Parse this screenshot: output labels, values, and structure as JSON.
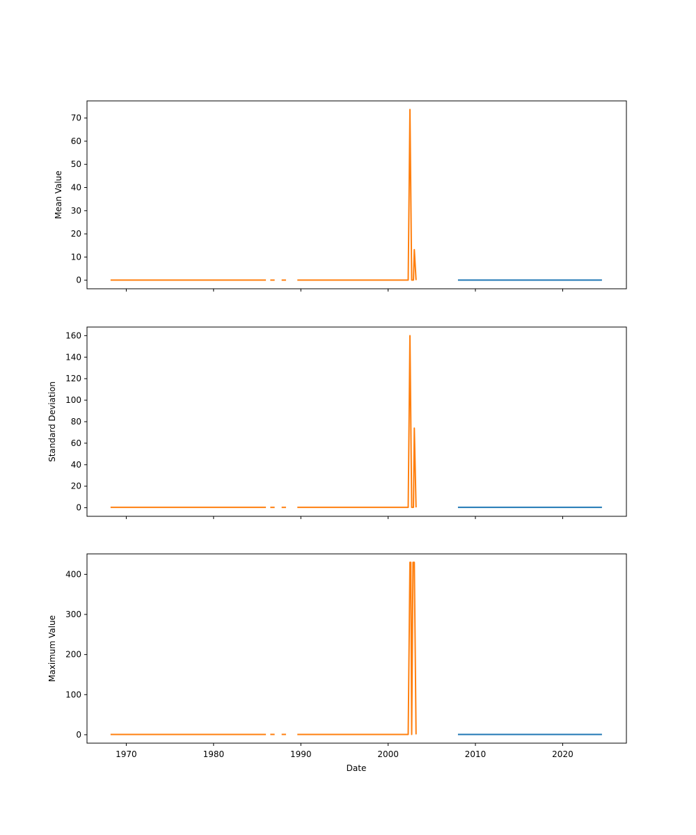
{
  "figure": {
    "xlabel": "Date",
    "xlim": [
      1965.5,
      2027.3
    ],
    "xticks": [
      1970,
      1980,
      1990,
      2000,
      2010,
      2020
    ]
  },
  "colors": {
    "series_a": "#1f77b4",
    "series_b": "#ff7f0e"
  },
  "chart_data": [
    {
      "type": "line",
      "ylabel": "Mean Value",
      "ylim": [
        -3.7,
        77.4
      ],
      "yticks": [
        0,
        10,
        20,
        30,
        40,
        50,
        60,
        70
      ],
      "grid": false,
      "x_axis_tick_labels_shown": false,
      "series": [
        {
          "color": "series_a",
          "segments": [
            [
              [
                2008.0,
                0.05
              ],
              [
                2016.0,
                0.05
              ],
              [
                2024.5,
                0.05
              ]
            ]
          ]
        },
        {
          "color": "series_b",
          "segments": [
            [
              [
                1968.2,
                0.05
              ],
              [
                1976.0,
                0.05
              ],
              [
                1986.0,
                0.05
              ]
            ],
            [
              [
                1986.5,
                0.05
              ],
              [
                1987.0,
                0.05
              ]
            ],
            [
              [
                1987.8,
                0.05
              ],
              [
                1988.3,
                0.05
              ]
            ],
            [
              [
                1989.6,
                0.05
              ],
              [
                1997.0,
                0.05
              ],
              [
                2002.3,
                0.05
              ],
              [
                2002.5,
                73.7
              ],
              [
                2002.7,
                0.05
              ],
              [
                2002.9,
                0.05
              ],
              [
                2003.0,
                13.2
              ],
              [
                2003.2,
                0.05
              ]
            ]
          ]
        }
      ]
    },
    {
      "type": "line",
      "ylabel": "Standard Deviation",
      "ylim": [
        -8.0,
        168.0
      ],
      "yticks": [
        0,
        20,
        40,
        60,
        80,
        100,
        120,
        140,
        160
      ],
      "grid": false,
      "x_axis_tick_labels_shown": false,
      "series": [
        {
          "color": "series_a",
          "segments": [
            [
              [
                2008.0,
                0.3
              ],
              [
                2016.0,
                0.3
              ],
              [
                2024.5,
                0.3
              ]
            ]
          ]
        },
        {
          "color": "series_b",
          "segments": [
            [
              [
                1968.2,
                0.3
              ],
              [
                1976.0,
                0.3
              ],
              [
                1986.0,
                0.3
              ]
            ],
            [
              [
                1986.5,
                0.3
              ],
              [
                1987.0,
                0.3
              ]
            ],
            [
              [
                1987.8,
                0.3
              ],
              [
                1988.3,
                0.3
              ]
            ],
            [
              [
                1989.6,
                0.3
              ],
              [
                1997.0,
                0.3
              ],
              [
                2002.3,
                0.3
              ],
              [
                2002.5,
                160.0
              ],
              [
                2002.7,
                0.3
              ],
              [
                2002.9,
                0.3
              ],
              [
                2003.0,
                74.0
              ],
              [
                2003.2,
                0.3
              ]
            ]
          ]
        }
      ]
    },
    {
      "type": "line",
      "ylabel": "Maximum Value",
      "ylim": [
        -21.0,
        451.0
      ],
      "yticks": [
        0,
        100,
        200,
        300,
        400
      ],
      "grid": false,
      "x_axis_tick_labels_shown": true,
      "series": [
        {
          "color": "series_a",
          "segments": [
            [
              [
                2008.0,
                0.8
              ],
              [
                2016.0,
                0.8
              ],
              [
                2024.5,
                0.8
              ]
            ]
          ]
        },
        {
          "color": "series_b",
          "segments": [
            [
              [
                1968.2,
                0.8
              ],
              [
                1976.0,
                0.8
              ],
              [
                1986.0,
                0.8
              ]
            ],
            [
              [
                1986.5,
                0.8
              ],
              [
                1987.0,
                0.8
              ]
            ],
            [
              [
                1987.8,
                0.8
              ],
              [
                1988.3,
                0.8
              ]
            ],
            [
              [
                1989.6,
                0.8
              ],
              [
                1997.0,
                0.8
              ],
              [
                2002.3,
                0.8
              ],
              [
                2002.5,
                430.0
              ],
              [
                2002.6,
                430.0
              ],
              [
                2002.7,
                0.8
              ],
              [
                2002.85,
                430.0
              ],
              [
                2003.0,
                430.0
              ],
              [
                2003.2,
                0.8
              ]
            ]
          ]
        }
      ]
    }
  ]
}
